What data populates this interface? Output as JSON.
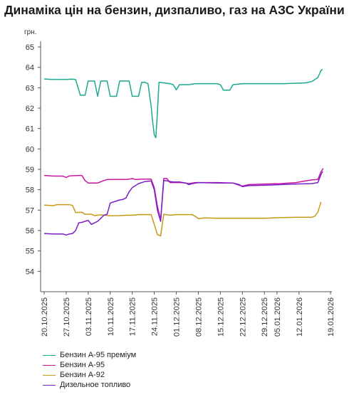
{
  "title": "Динаміка цін на бензин, дизпаливо, газ на АЗС України",
  "chart_data": {
    "type": "line",
    "ylabel": "грн.",
    "xlabel": "",
    "ylim": [
      53,
      65
    ],
    "yticks": [
      54,
      55,
      56,
      57,
      58,
      59,
      60,
      61,
      62,
      63,
      64,
      65
    ],
    "x_tick_labels": [
      "20.10.2025",
      "27.10.2025",
      "03.11.2025",
      "10.11.2025",
      "17.11.2025",
      "24.11.2025",
      "01.12.2025",
      "08.12.2025",
      "15.12.2025",
      "22.12.2025",
      "29.12.2025",
      "05.01.2026",
      "12.01.2026",
      "19.01.2026"
    ],
    "x_tick_days": [
      0,
      7,
      14,
      21,
      28,
      35,
      42,
      49,
      56,
      63,
      70,
      74,
      81,
      91
    ],
    "x_range_days": [
      0,
      91
    ],
    "grid": false,
    "legend_position": "bottom-left",
    "series": [
      {
        "name": "Бензин А-95 преміум",
        "color": "#1aab8f",
        "points": [
          [
            0,
            63.43
          ],
          [
            1,
            63.42
          ],
          [
            2,
            63.41
          ],
          [
            4,
            63.41
          ],
          [
            7,
            63.41
          ],
          [
            9,
            63.42
          ],
          [
            10,
            63.4
          ],
          [
            11.5,
            62.63
          ],
          [
            13,
            62.63
          ],
          [
            14,
            63.33
          ],
          [
            16,
            63.33
          ],
          [
            17,
            62.58
          ],
          [
            18,
            63.33
          ],
          [
            20,
            63.33
          ],
          [
            21,
            62.58
          ],
          [
            23,
            62.58
          ],
          [
            24,
            63.33
          ],
          [
            27,
            63.33
          ],
          [
            28,
            62.58
          ],
          [
            30,
            62.58
          ],
          [
            31,
            63.27
          ],
          [
            32,
            63.27
          ],
          [
            33,
            63.2
          ],
          [
            34,
            62.1
          ],
          [
            34.5,
            61.3
          ],
          [
            35,
            60.7
          ],
          [
            35.5,
            60.55
          ],
          [
            36,
            61.8
          ],
          [
            36.5,
            63.27
          ],
          [
            40,
            63.2
          ],
          [
            41,
            63.15
          ],
          [
            42,
            62.9
          ],
          [
            43,
            63.15
          ],
          [
            46,
            63.15
          ],
          [
            48,
            63.2
          ],
          [
            52,
            63.2
          ],
          [
            55,
            63.2
          ],
          [
            56,
            63.15
          ],
          [
            57,
            62.88
          ],
          [
            59,
            62.88
          ],
          [
            60,
            63.15
          ],
          [
            63,
            63.2
          ],
          [
            70,
            63.2
          ],
          [
            76,
            63.2
          ],
          [
            83,
            63.24
          ],
          [
            85,
            63.3
          ],
          [
            87,
            63.5
          ],
          [
            88,
            63.85
          ],
          [
            88.5,
            63.9
          ]
        ]
      },
      {
        "name": "Бензин А-95",
        "color": "#c8179c",
        "points": [
          [
            0,
            58.7
          ],
          [
            3,
            58.67
          ],
          [
            6,
            58.67
          ],
          [
            7,
            58.6
          ],
          [
            8,
            58.68
          ],
          [
            11,
            58.7
          ],
          [
            12,
            58.7
          ],
          [
            13,
            58.45
          ],
          [
            14,
            58.33
          ],
          [
            17,
            58.33
          ],
          [
            19,
            58.45
          ],
          [
            20,
            58.5
          ],
          [
            26,
            58.5
          ],
          [
            27,
            58.52
          ],
          [
            28,
            58.55
          ],
          [
            29,
            58.5
          ],
          [
            31,
            58.52
          ],
          [
            34,
            58.52
          ],
          [
            35,
            58.1
          ],
          [
            36,
            57.2
          ],
          [
            37,
            56.5
          ],
          [
            38,
            58.55
          ],
          [
            39,
            58.55
          ],
          [
            40,
            58.35
          ],
          [
            43,
            58.35
          ],
          [
            45,
            58.33
          ],
          [
            46,
            58.3
          ],
          [
            48,
            58.35
          ],
          [
            55,
            58.35
          ],
          [
            60,
            58.33
          ],
          [
            62,
            58.22
          ],
          [
            63,
            58.18
          ],
          [
            65,
            58.25
          ],
          [
            70,
            58.28
          ],
          [
            75,
            58.3
          ],
          [
            80,
            58.35
          ],
          [
            85,
            58.48
          ],
          [
            87,
            58.5
          ],
          [
            88,
            58.88
          ],
          [
            88.7,
            59.05
          ]
        ]
      },
      {
        "name": "Бензин А-92",
        "color": "#c59a16",
        "points": [
          [
            0,
            57.25
          ],
          [
            3,
            57.22
          ],
          [
            4,
            57.27
          ],
          [
            8,
            57.27
          ],
          [
            9,
            57.23
          ],
          [
            10,
            56.88
          ],
          [
            12,
            56.9
          ],
          [
            13,
            56.8
          ],
          [
            15,
            56.8
          ],
          [
            16,
            56.73
          ],
          [
            18,
            56.77
          ],
          [
            21,
            56.72
          ],
          [
            24,
            56.73
          ],
          [
            26,
            56.75
          ],
          [
            28,
            56.75
          ],
          [
            30,
            56.78
          ],
          [
            34,
            56.78
          ],
          [
            35,
            56.3
          ],
          [
            36,
            55.8
          ],
          [
            37,
            55.73
          ],
          [
            38,
            56.8
          ],
          [
            40,
            56.75
          ],
          [
            42,
            56.78
          ],
          [
            47,
            56.78
          ],
          [
            48,
            56.7
          ],
          [
            49,
            56.58
          ],
          [
            51,
            56.62
          ],
          [
            55,
            56.6
          ],
          [
            62,
            56.6
          ],
          [
            70,
            56.6
          ],
          [
            75,
            56.63
          ],
          [
            80,
            56.65
          ],
          [
            85,
            56.65
          ],
          [
            86,
            56.7
          ],
          [
            87,
            56.9
          ],
          [
            88,
            57.4
          ]
        ]
      },
      {
        "name": "Дизельное топливо",
        "color": "#7a1ec7",
        "points": [
          [
            0,
            55.85
          ],
          [
            3,
            55.83
          ],
          [
            6,
            55.83
          ],
          [
            7,
            55.78
          ],
          [
            8,
            55.83
          ],
          [
            9,
            55.85
          ],
          [
            10,
            56.0
          ],
          [
            11,
            56.38
          ],
          [
            12,
            56.4
          ],
          [
            13,
            56.45
          ],
          [
            14,
            56.5
          ],
          [
            15,
            56.3
          ],
          [
            17,
            56.45
          ],
          [
            18,
            56.6
          ],
          [
            19,
            56.75
          ],
          [
            20,
            56.8
          ],
          [
            21,
            57.35
          ],
          [
            22,
            57.4
          ],
          [
            24,
            57.5
          ],
          [
            25,
            57.52
          ],
          [
            26,
            57.6
          ],
          [
            27,
            57.9
          ],
          [
            28,
            58.1
          ],
          [
            30,
            58.3
          ],
          [
            32,
            58.4
          ],
          [
            34,
            58.43
          ],
          [
            35,
            58.0
          ],
          [
            36,
            57.0
          ],
          [
            37,
            56.45
          ],
          [
            38,
            58.45
          ],
          [
            39,
            58.43
          ],
          [
            41,
            58.38
          ],
          [
            43,
            58.38
          ],
          [
            45,
            58.33
          ],
          [
            46,
            58.25
          ],
          [
            47,
            58.3
          ],
          [
            49,
            58.35
          ],
          [
            55,
            58.33
          ],
          [
            60,
            58.33
          ],
          [
            62,
            58.25
          ],
          [
            63,
            58.15
          ],
          [
            65,
            58.2
          ],
          [
            70,
            58.22
          ],
          [
            75,
            58.25
          ],
          [
            80,
            58.28
          ],
          [
            85,
            58.3
          ],
          [
            87,
            58.35
          ],
          [
            88,
            58.75
          ],
          [
            88.5,
            58.9
          ]
        ]
      }
    ]
  }
}
